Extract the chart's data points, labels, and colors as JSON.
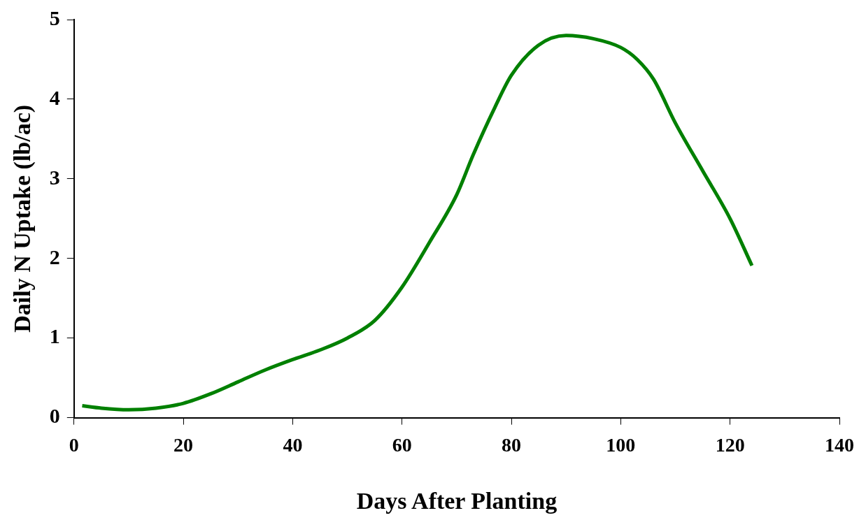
{
  "chart_data": {
    "type": "line",
    "xlabel": "Days After Planting",
    "ylabel": "Daily N Uptake (lb/ac)",
    "xlim": [
      0,
      140
    ],
    "xticks": [
      0,
      20,
      40,
      60,
      80,
      100,
      120,
      140
    ],
    "ylim": [
      0,
      5
    ],
    "yticks": [
      0,
      1,
      2,
      3,
      4,
      5
    ],
    "grid": false,
    "legend": false,
    "marker": "none",
    "line_style": "solid",
    "series": [
      {
        "color": "#008000",
        "x": [
          1.5,
          5,
          10,
          15,
          20,
          25,
          30,
          35,
          40,
          45,
          50,
          55,
          60,
          65,
          70,
          73,
          77,
          80,
          85,
          90,
          95,
          100,
          103,
          106,
          110,
          115,
          120,
          124
        ],
        "values": [
          0.15,
          0.12,
          0.1,
          0.12,
          0.18,
          0.3,
          0.45,
          0.6,
          0.73,
          0.85,
          1.0,
          1.22,
          1.64,
          2.2,
          2.8,
          3.3,
          3.9,
          4.3,
          4.68,
          4.8,
          4.76,
          4.65,
          4.5,
          4.25,
          3.7,
          3.1,
          2.5,
          1.91
        ]
      }
    ]
  }
}
